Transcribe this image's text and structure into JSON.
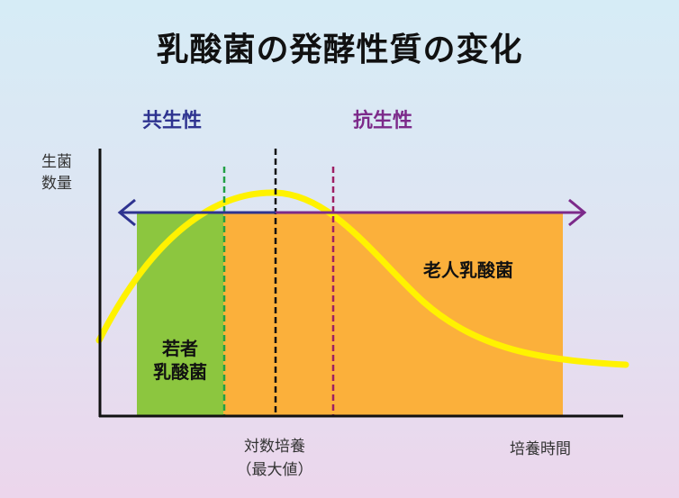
{
  "title": "乳酸菌の発酵性質の変化",
  "phases": {
    "symbiotic": {
      "label": "共生性",
      "color": "#2e3390"
    },
    "antibiotic": {
      "label": "抗生性",
      "color": "#7c2a8a"
    }
  },
  "axes": {
    "y_label_line1": "生菌",
    "y_label_line2": "数量",
    "x_marker_line1": "対数培養",
    "x_marker_line2": "（最大値）",
    "x_label": "培養時間"
  },
  "bands": {
    "young": {
      "line1": "若者",
      "line2": "乳酸菌",
      "color": "#8cc63f"
    },
    "old": {
      "label": "老人乳酸菌",
      "color": "#fbb03b"
    }
  },
  "colors": {
    "curve": "#fff200",
    "green_marker": "#22a045",
    "black_marker": "#111111",
    "magenta_marker": "#9e1f63"
  }
}
